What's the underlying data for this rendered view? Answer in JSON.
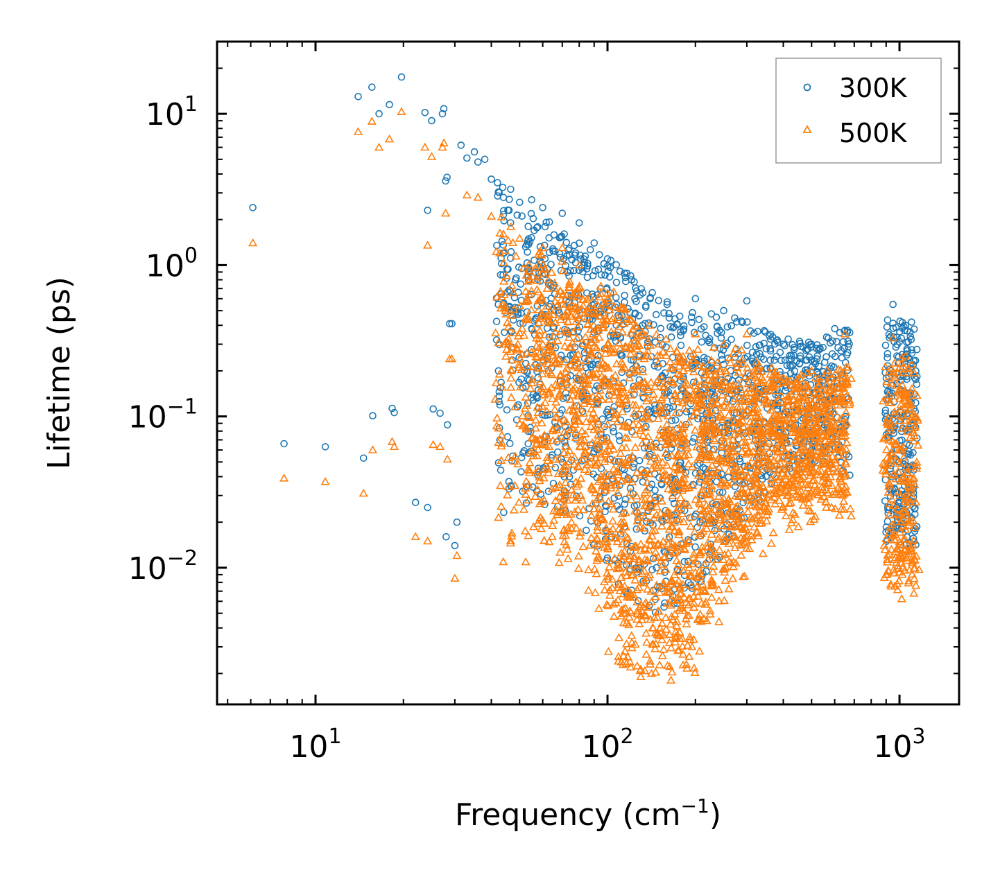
{
  "chart_data": {
    "type": "scatter",
    "title": "",
    "xlabel": "Frequency (cm",
    "xlabel_sup": "−1",
    "xlabel_end": ")",
    "ylabel": "Lifetime (ps)",
    "xscale": "log",
    "yscale": "log",
    "xlim": [
      4.6,
      1600
    ],
    "ylim": [
      0.00125,
      30
    ],
    "x_ticks": [
      {
        "value": 10,
        "base": "10",
        "exp": "1"
      },
      {
        "value": 100,
        "base": "10",
        "exp": "2"
      },
      {
        "value": 1000,
        "base": "10",
        "exp": "3"
      }
    ],
    "y_ticks": [
      {
        "value": 10,
        "base": "10",
        "exp": "1"
      },
      {
        "value": 1,
        "base": "10",
        "exp": "0"
      },
      {
        "value": 0.1,
        "base": "10",
        "exp": "−1"
      },
      {
        "value": 0.01,
        "base": "10",
        "exp": "−2"
      }
    ],
    "legend_position": "top-right",
    "series": [
      {
        "name": "300K",
        "marker": "circle",
        "color": "#1f77b4",
        "sample_points": [
          [
            6.1,
            2.4
          ],
          [
            7.8,
            0.066
          ],
          [
            10.8,
            0.063
          ],
          [
            14.0,
            13
          ],
          [
            14.6,
            0.053
          ],
          [
            15.6,
            15
          ],
          [
            15.7,
            0.101
          ],
          [
            16.5,
            10
          ],
          [
            17.9,
            11.5
          ],
          [
            18.3,
            0.113
          ],
          [
            18.6,
            0.106
          ],
          [
            19.7,
            17.5
          ],
          [
            22.0,
            0.027
          ],
          [
            23.7,
            10.2
          ],
          [
            24.2,
            2.3
          ],
          [
            24.2,
            0.025
          ],
          [
            25.0,
            9
          ],
          [
            25.3,
            0.112
          ],
          [
            26.7,
            0.105
          ],
          [
            27.2,
            10
          ],
          [
            27.5,
            10.8
          ],
          [
            27.9,
            3.6
          ],
          [
            28.0,
            0.016
          ],
          [
            28.2,
            3.8
          ],
          [
            28.3,
            0.088
          ],
          [
            28.8,
            0.41
          ],
          [
            29.3,
            0.41
          ],
          [
            30.0,
            0.014
          ],
          [
            30.5,
            0.02
          ],
          [
            31.5,
            6.2
          ],
          [
            33,
            5.1
          ],
          [
            35,
            5.6
          ],
          [
            36,
            4.8
          ],
          [
            38,
            5
          ],
          [
            40,
            3.7
          ],
          [
            42,
            3.5
          ],
          [
            44,
            2.8
          ],
          [
            46,
            2.3
          ],
          [
            50,
            2.6
          ],
          [
            55,
            2.7
          ],
          [
            60,
            2.4
          ],
          [
            70,
            2.2
          ],
          [
            80,
            1.9
          ],
          [
            90,
            1.4
          ],
          [
            100,
            1.1
          ],
          [
            120,
            0.85
          ],
          [
            140,
            0.6
          ],
          [
            160,
            0.55
          ],
          [
            200,
            0.6
          ],
          [
            250,
            0.5
          ],
          [
            300,
            0.58
          ],
          [
            400,
            0.3
          ],
          [
            500,
            0.3
          ],
          [
            600,
            0.38
          ],
          [
            650,
            0.37
          ],
          [
            950,
            0.55
          ],
          [
            1050,
            0.4
          ],
          [
            1100,
            0.42
          ]
        ]
      },
      {
        "name": "500K",
        "marker": "triangle",
        "color": "#ff7f0e",
        "sample_points": [
          [
            6.1,
            1.4
          ],
          [
            7.8,
            0.039
          ],
          [
            10.8,
            0.037
          ],
          [
            14.0,
            7.6
          ],
          [
            14.6,
            0.031
          ],
          [
            15.6,
            8.9
          ],
          [
            15.7,
            0.06
          ],
          [
            16.5,
            6
          ],
          [
            17.9,
            6.8
          ],
          [
            18.3,
            0.068
          ],
          [
            18.6,
            0.063
          ],
          [
            19.7,
            10.3
          ],
          [
            22.0,
            0.016
          ],
          [
            23.7,
            6
          ],
          [
            24.2,
            1.35
          ],
          [
            24.2,
            0.015
          ],
          [
            25.0,
            5.2
          ],
          [
            25.3,
            0.065
          ],
          [
            26.7,
            0.063
          ],
          [
            27.2,
            6
          ],
          [
            27.5,
            6.4
          ],
          [
            27.9,
            2.2
          ],
          [
            28.3,
            0.052
          ],
          [
            28.8,
            0.24
          ],
          [
            29.3,
            0.24
          ],
          [
            30.0,
            0.0085
          ],
          [
            30.5,
            0.012
          ],
          [
            33,
            2.9
          ],
          [
            36,
            2.8
          ],
          [
            40,
            2.1
          ],
          [
            44,
            1.6
          ],
          [
            50,
            1.5
          ],
          [
            60,
            1.3
          ],
          [
            70,
            1.3
          ],
          [
            80,
            1.0
          ],
          [
            100,
            0.65
          ],
          [
            120,
            0.3
          ],
          [
            150,
            0.3
          ],
          [
            200,
            0.35
          ],
          [
            250,
            0.3
          ],
          [
            300,
            0.35
          ],
          [
            400,
            0.18
          ],
          [
            500,
            0.2
          ],
          [
            650,
            0.35
          ],
          [
            950,
            0.33
          ],
          [
            1050,
            0.25
          ],
          [
            1100,
            0.22
          ],
          [
            130,
            0.0019
          ],
          [
            165,
            0.0018
          ],
          [
            120,
            0.0022
          ],
          [
            140,
            0.0023
          ]
        ]
      }
    ]
  }
}
